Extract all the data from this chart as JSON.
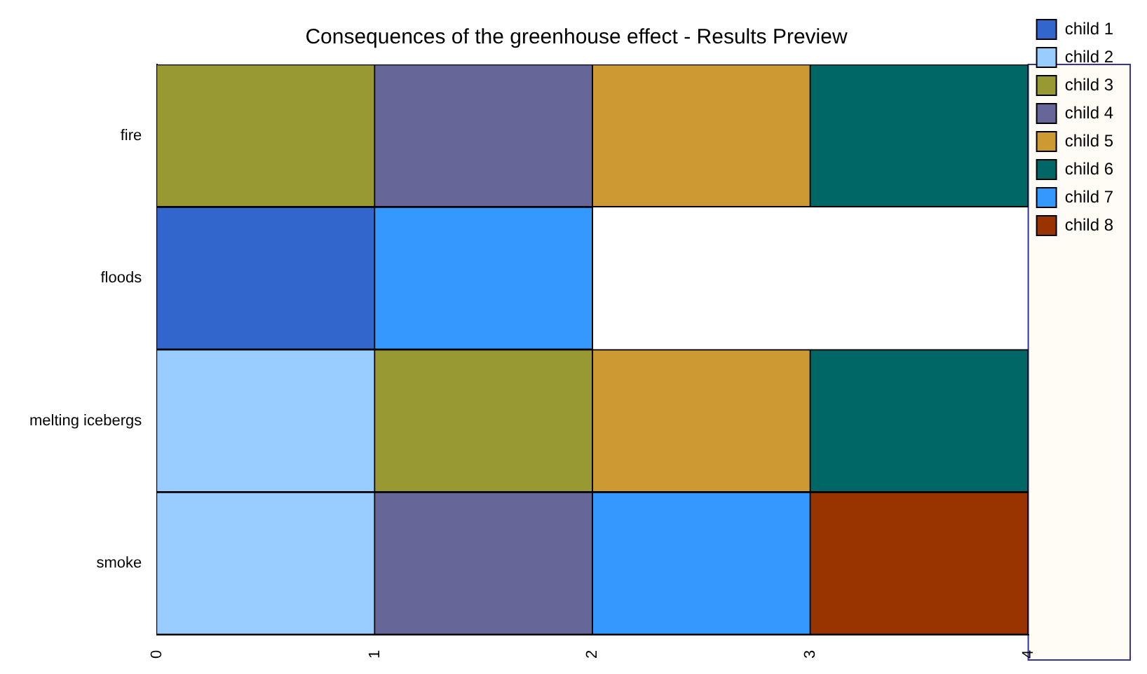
{
  "chart_data": {
    "type": "bar",
    "orientation": "horizontal",
    "stacked": true,
    "title": "Consequences of the greenhouse effect - Results Preview",
    "categories": [
      "fire",
      "floods",
      "melting icebergs",
      "smoke"
    ],
    "series": [
      {
        "name": "child 1",
        "color": "#3366cc",
        "values": [
          null,
          1,
          null,
          null
        ]
      },
      {
        "name": "child 2",
        "color": "#99ccff",
        "values": [
          null,
          null,
          1,
          1
        ]
      },
      {
        "name": "child 3",
        "color": "#999933",
        "values": [
          1,
          null,
          1,
          null
        ]
      },
      {
        "name": "child 4",
        "color": "#666699",
        "values": [
          1,
          null,
          null,
          1
        ]
      },
      {
        "name": "child 5",
        "color": "#cc9933",
        "values": [
          1,
          null,
          1,
          null
        ]
      },
      {
        "name": "child 6",
        "color": "#006666",
        "values": [
          1,
          null,
          1,
          null
        ]
      },
      {
        "name": "child 7",
        "color": "#3399ff",
        "values": [
          null,
          1,
          null,
          1
        ]
      },
      {
        "name": "child 8",
        "color": "#993300",
        "values": [
          null,
          null,
          null,
          1
        ]
      }
    ],
    "xlim": [
      0,
      4
    ],
    "xticks": [
      0,
      1,
      2,
      3,
      4
    ],
    "grid": false,
    "legend": "right"
  }
}
